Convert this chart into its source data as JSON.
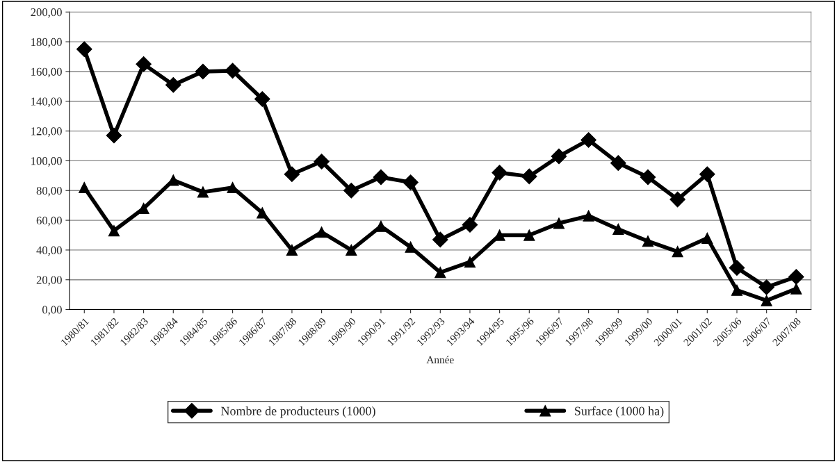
{
  "chart_data": {
    "type": "line",
    "xlabel": "Année",
    "categories": [
      "1980/81",
      "1981/82",
      "1982/83",
      "1983/84",
      "1984/85",
      "1985/86",
      "1986/87",
      "1987/88",
      "1988/89",
      "1989/90",
      "1990/91",
      "1991/92",
      "1992/93",
      "1993/94",
      "1994/95",
      "1995/96",
      "1996/97",
      "1997/98",
      "1998/99",
      "1999/00",
      "2000/01",
      "2001/02",
      "2005/06",
      "2006/07",
      "2007/08"
    ],
    "series": [
      {
        "name": "Nombre de producteurs (1000)",
        "color": "#000000",
        "marker": "diamond",
        "values": [
          175,
          117,
          165,
          151,
          160,
          160.5,
          141.5,
          91,
          99.5,
          80,
          89,
          85.5,
          47,
          57,
          92,
          89.5,
          103,
          114,
          98.5,
          89,
          74,
          91,
          28,
          15,
          22
        ]
      },
      {
        "name": "Surface (1000 ha)",
        "color": "#000000",
        "marker": "triangle",
        "values": [
          82,
          53,
          68,
          87,
          79,
          82,
          65,
          40,
          52,
          40,
          56,
          42,
          25,
          32,
          50,
          50,
          58,
          63,
          54,
          46,
          39,
          48,
          13,
          6,
          14
        ]
      }
    ],
    "ylim": [
      0,
      200
    ],
    "yticks": [
      {
        "value": 0,
        "label": "0,00"
      },
      {
        "value": 20,
        "label": "20,00"
      },
      {
        "value": 40,
        "label": "40,00"
      },
      {
        "value": 60,
        "label": "60,00"
      },
      {
        "value": 80,
        "label": "80,00"
      },
      {
        "value": 100,
        "label": "100,00"
      },
      {
        "value": 120,
        "label": "120,00"
      },
      {
        "value": 140,
        "label": "140,00"
      },
      {
        "value": 160,
        "label": "160,00"
      },
      {
        "value": 180,
        "label": "180,00"
      },
      {
        "value": 200,
        "label": "200,00"
      }
    ],
    "grid": "y",
    "legend": "bottom",
    "line_style": "solid"
  }
}
